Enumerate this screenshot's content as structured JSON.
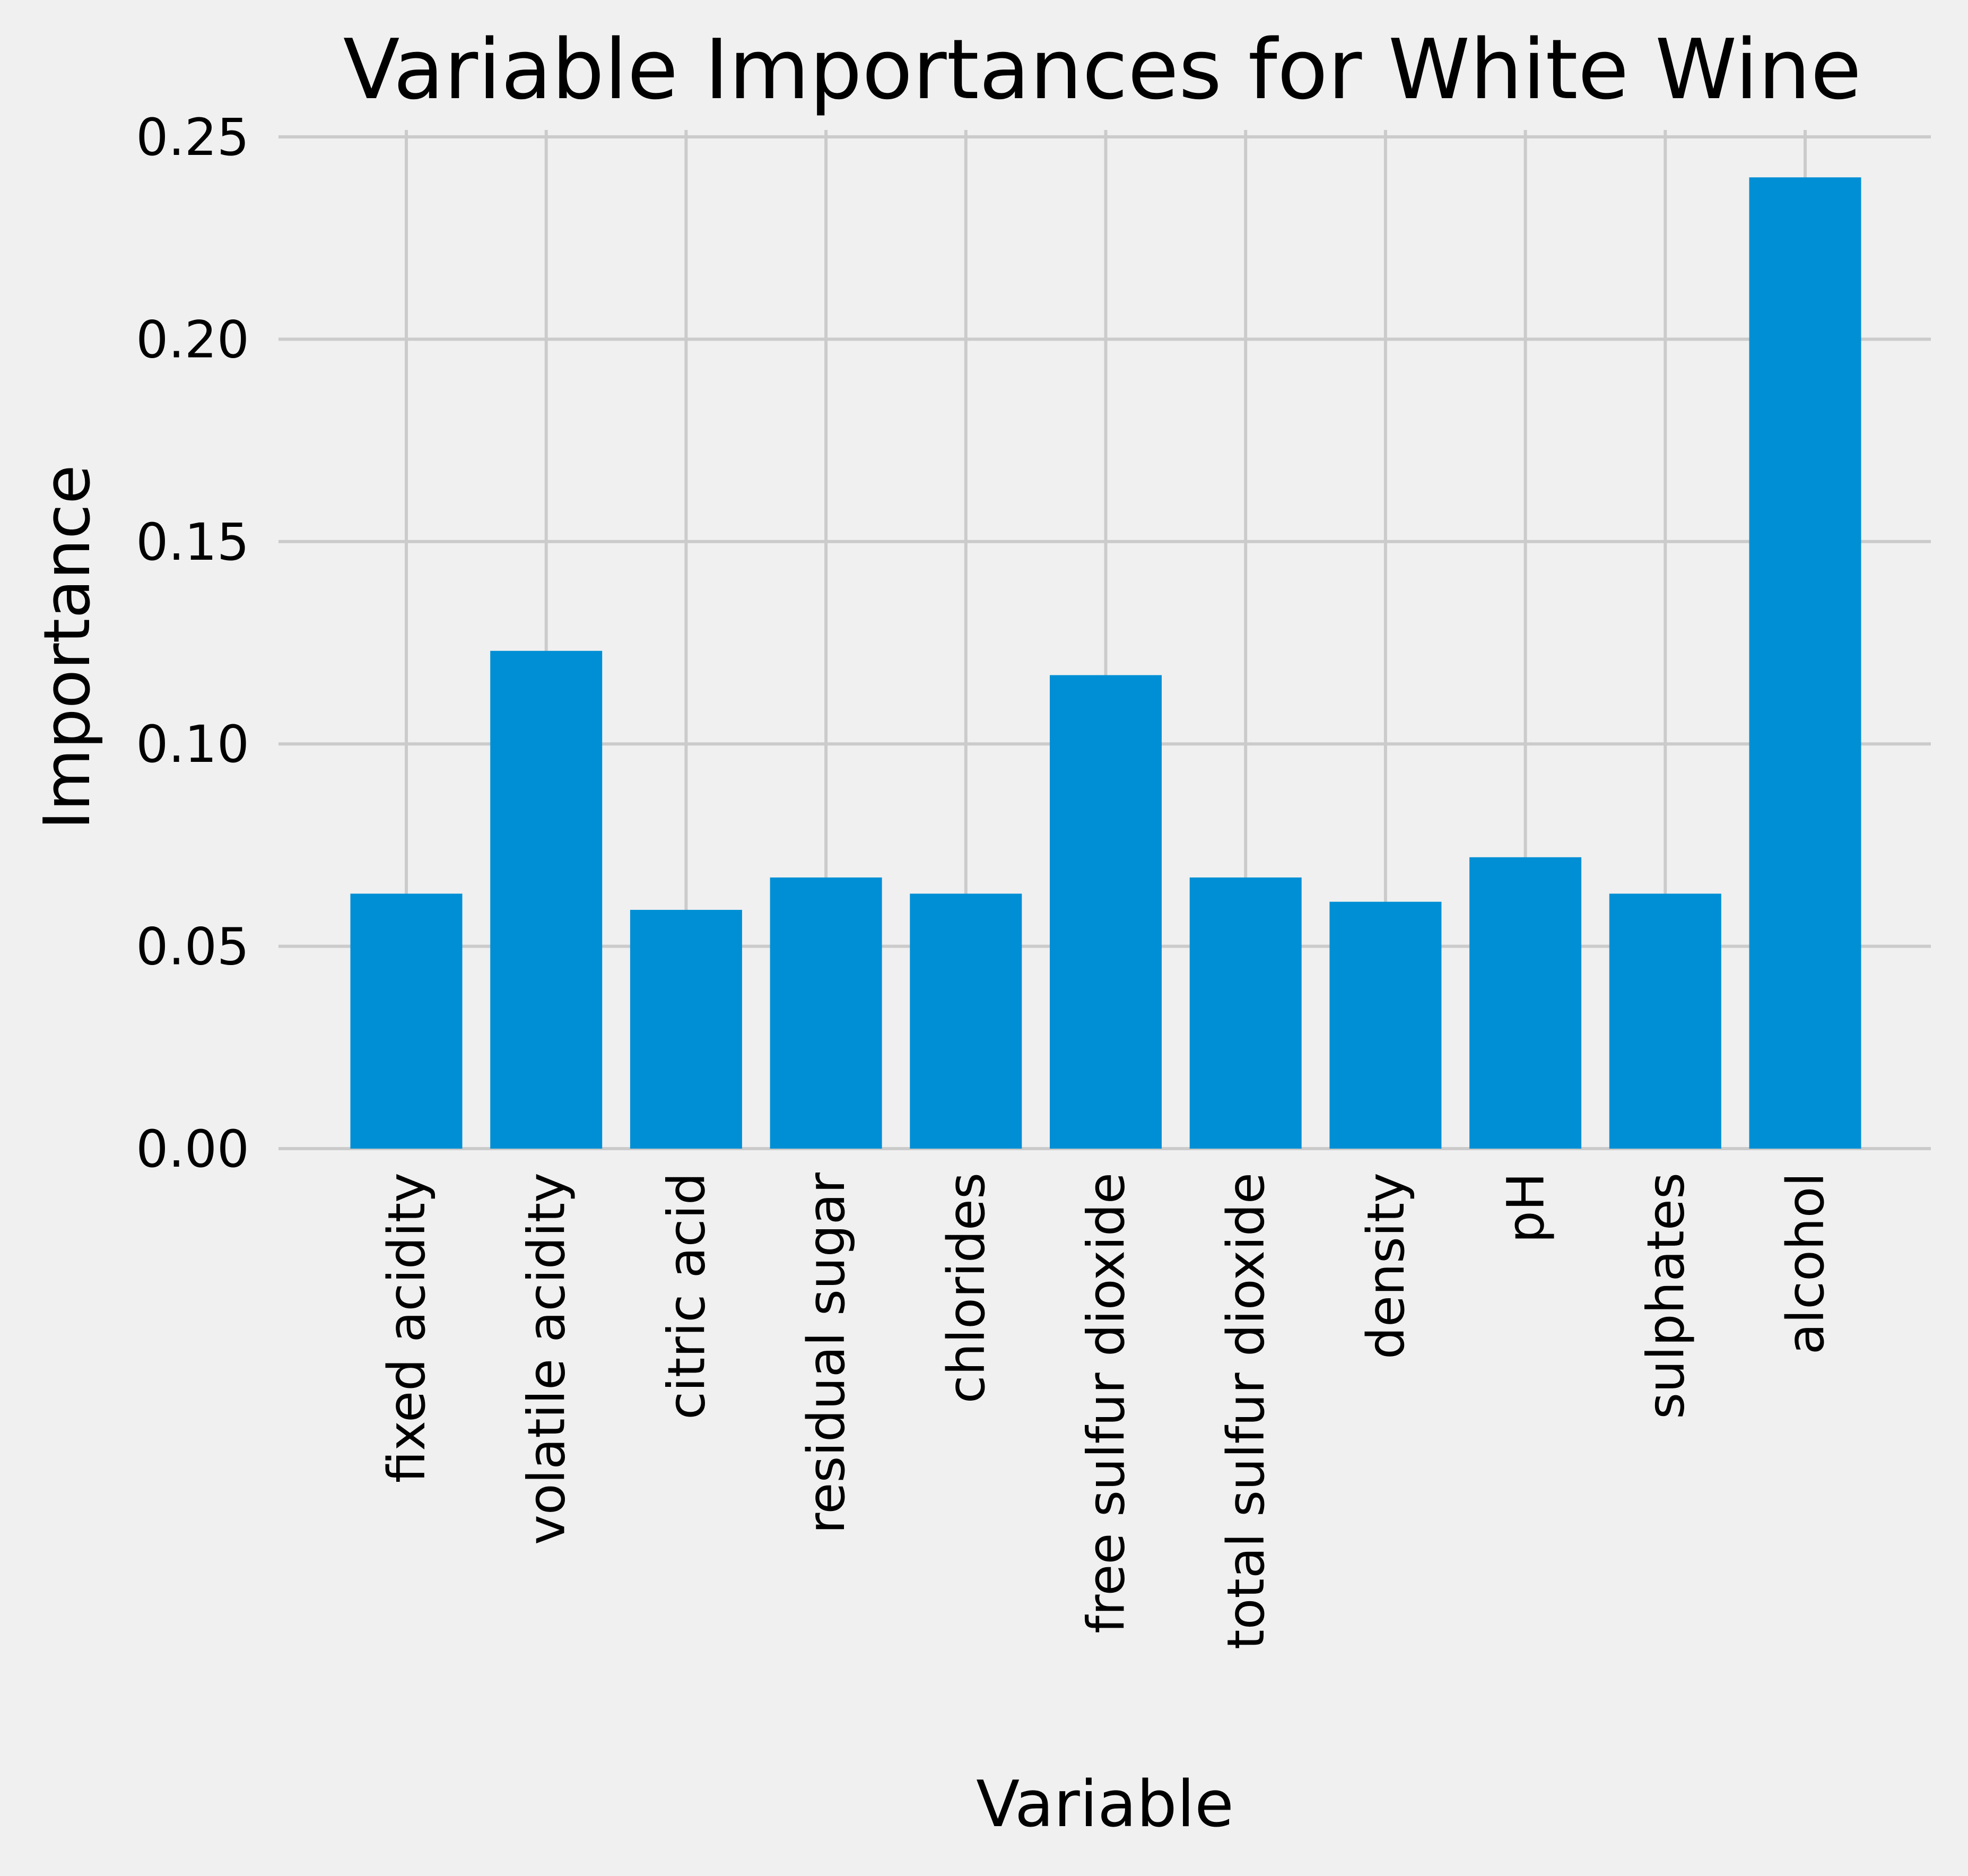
{
  "chart_data": {
    "type": "bar",
    "title": "Variable Importances for White Wine",
    "xlabel": "Variable",
    "ylabel": "Importance",
    "categories": [
      "fixed acidity",
      "volatile acidity",
      "citric acid",
      "residual sugar",
      "chlorides",
      "free sulfur dioxide",
      "total sulfur dioxide",
      "density",
      "pH",
      "sulphates",
      "alcohol"
    ],
    "values": [
      0.063,
      0.123,
      0.059,
      0.067,
      0.063,
      0.117,
      0.067,
      0.061,
      0.072,
      0.063,
      0.24
    ],
    "ylim": [
      0,
      0.25
    ],
    "yticks": [
      "0.00",
      "0.05",
      "0.10",
      "0.15",
      "0.20",
      "0.25"
    ],
    "grid": true,
    "bar_color": "#008fd5",
    "background_color": "#f0f0f0"
  }
}
